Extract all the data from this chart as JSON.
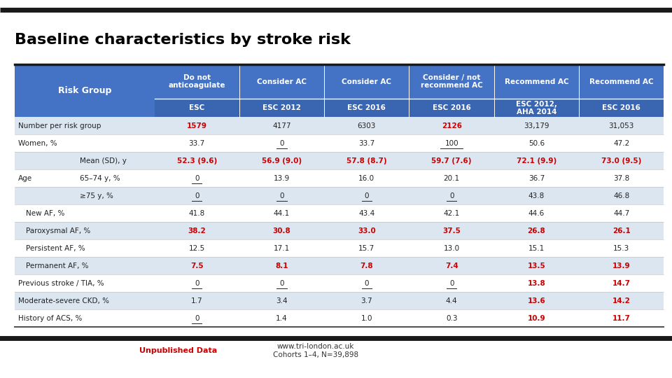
{
  "title": "Baseline characteristics by stroke risk",
  "title_fontsize": 16,
  "title_fontweight": "bold",
  "bg_color": "#ffffff",
  "header_bg": "#4472c4",
  "subheader_bg": "#3a65b0",
  "row_alt1": "#dce6f1",
  "row_alt2": "#ffffff",
  "col_groups": [
    {
      "label": "Do not\nanticoagulate",
      "sub": "ESC"
    },
    {
      "label": "Consider AC",
      "sub": "ESC 2012"
    },
    {
      "label": "Consider AC",
      "sub": "ESC 2016"
    },
    {
      "label": "Consider / not\nrecommend AC",
      "sub": "ESC 2016"
    },
    {
      "label": "Recommend AC",
      "sub": "ESC 2012,\nAHA 2014"
    },
    {
      "label": "Recommend AC",
      "sub": "ESC 2016"
    }
  ],
  "rows": [
    {
      "label": "Number per risk group",
      "indent": 0,
      "values": [
        "1579",
        "4177",
        "6303",
        "2126",
        "33,179",
        "31,053"
      ],
      "bold": [
        true,
        false,
        false,
        true,
        false,
        false
      ],
      "red": [
        true,
        false,
        false,
        true,
        false,
        false
      ],
      "underline": [
        false,
        false,
        false,
        false,
        false,
        false
      ]
    },
    {
      "label": "Women, %",
      "indent": 0,
      "values": [
        "33.7",
        "0",
        "33.7",
        "100",
        "50.6",
        "47.2"
      ],
      "bold": [
        false,
        false,
        false,
        false,
        false,
        false
      ],
      "red": [
        false,
        false,
        false,
        false,
        false,
        false
      ],
      "underline": [
        false,
        true,
        false,
        true,
        false,
        false
      ]
    },
    {
      "label": "Mean (SD), y",
      "indent": 2,
      "values": [
        "52.3 (9.6)",
        "56.9 (9.0)",
        "57.8 (8.7)",
        "59.7 (7.6)",
        "72.1 (9.9)",
        "73.0 (9.5)"
      ],
      "bold": [
        true,
        true,
        true,
        true,
        true,
        true
      ],
      "red": [
        true,
        true,
        true,
        true,
        true,
        true
      ],
      "underline": [
        false,
        false,
        false,
        false,
        false,
        false
      ]
    },
    {
      "label": "65–74 y, %",
      "indent": 2,
      "values": [
        "0",
        "13.9",
        "16.0",
        "20.1",
        "36.7",
        "37.8"
      ],
      "bold": [
        false,
        false,
        false,
        false,
        false,
        false
      ],
      "red": [
        false,
        false,
        false,
        false,
        false,
        false
      ],
      "underline": [
        true,
        false,
        false,
        false,
        false,
        false
      ]
    },
    {
      "label": "≥75 y, %",
      "indent": 2,
      "values": [
        "0",
        "0",
        "0",
        "0",
        "43.8",
        "46.8"
      ],
      "bold": [
        false,
        false,
        false,
        false,
        false,
        false
      ],
      "red": [
        false,
        false,
        false,
        false,
        false,
        false
      ],
      "underline": [
        true,
        true,
        true,
        true,
        false,
        false
      ]
    },
    {
      "label": "New AF, %",
      "indent": 1,
      "values": [
        "41.8",
        "44.1",
        "43.4",
        "42.1",
        "44.6",
        "44.7"
      ],
      "bold": [
        false,
        false,
        false,
        false,
        false,
        false
      ],
      "red": [
        false,
        false,
        false,
        false,
        false,
        false
      ],
      "underline": [
        false,
        false,
        false,
        false,
        false,
        false
      ]
    },
    {
      "label": "Paroxysmal AF, %",
      "indent": 1,
      "values": [
        "38.2",
        "30.8",
        "33.0",
        "37.5",
        "26.8",
        "26.1"
      ],
      "bold": [
        true,
        true,
        true,
        true,
        true,
        true
      ],
      "red": [
        true,
        true,
        true,
        true,
        true,
        true
      ],
      "underline": [
        false,
        false,
        false,
        false,
        false,
        false
      ]
    },
    {
      "label": "Persistent AF, %",
      "indent": 1,
      "values": [
        "12.5",
        "17.1",
        "15.7",
        "13.0",
        "15.1",
        "15.3"
      ],
      "bold": [
        false,
        false,
        false,
        false,
        false,
        false
      ],
      "red": [
        false,
        false,
        false,
        false,
        false,
        false
      ],
      "underline": [
        false,
        false,
        false,
        false,
        false,
        false
      ]
    },
    {
      "label": "Permanent AF, %",
      "indent": 1,
      "values": [
        "7.5",
        "8.1",
        "7.8",
        "7.4",
        "13.5",
        "13.9"
      ],
      "bold": [
        true,
        true,
        true,
        true,
        true,
        true
      ],
      "red": [
        true,
        true,
        true,
        true,
        true,
        true
      ],
      "underline": [
        false,
        false,
        false,
        false,
        false,
        false
      ]
    },
    {
      "label": "Previous stroke / TIA, %",
      "indent": 0,
      "values": [
        "0",
        "0",
        "0",
        "0",
        "13.8",
        "14.7"
      ],
      "bold": [
        false,
        false,
        false,
        false,
        true,
        true
      ],
      "red": [
        false,
        false,
        false,
        false,
        true,
        true
      ],
      "underline": [
        true,
        true,
        true,
        true,
        false,
        false
      ]
    },
    {
      "label": "Moderate-severe CKD, %",
      "indent": 0,
      "values": [
        "1.7",
        "3.4",
        "3.7",
        "4.4",
        "13.6",
        "14.2"
      ],
      "bold": [
        false,
        false,
        false,
        false,
        true,
        true
      ],
      "red": [
        false,
        false,
        false,
        false,
        true,
        true
      ],
      "underline": [
        false,
        false,
        false,
        false,
        false,
        false
      ]
    },
    {
      "label": "History of ACS, %",
      "indent": 0,
      "values": [
        "0",
        "1.4",
        "1.0",
        "0.3",
        "10.9",
        "11.7"
      ],
      "bold": [
        false,
        false,
        false,
        false,
        true,
        true
      ],
      "red": [
        false,
        false,
        false,
        false,
        true,
        true
      ],
      "underline": [
        true,
        false,
        false,
        false,
        false,
        false
      ]
    }
  ],
  "age_label": "Age",
  "age_row_indices": [
    2,
    3,
    4
  ],
  "footer_left": "Unpublished Data",
  "footer_center": "www.tri-london.ac.uk\nCohorts 1–4, N=39,898",
  "top_bar_color": "#1a1a1a",
  "bottom_bar_color": "#1a1a1a"
}
